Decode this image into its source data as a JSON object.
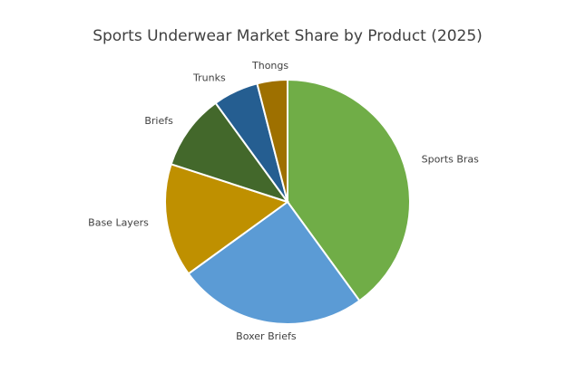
{
  "chart_data": {
    "type": "pie",
    "title": "Sports Underwear Market Share by Product (2025)",
    "categories": [
      "Sports Bras",
      "Boxer Briefs",
      "Base Layers",
      "Briefs",
      "Trunks",
      "Thongs"
    ],
    "values": [
      40,
      25,
      15,
      10,
      6,
      4
    ],
    "colors": [
      "#70ad47",
      "#5b9bd5",
      "#bf9000",
      "#43682b",
      "#255e91",
      "#9e7000"
    ]
  }
}
